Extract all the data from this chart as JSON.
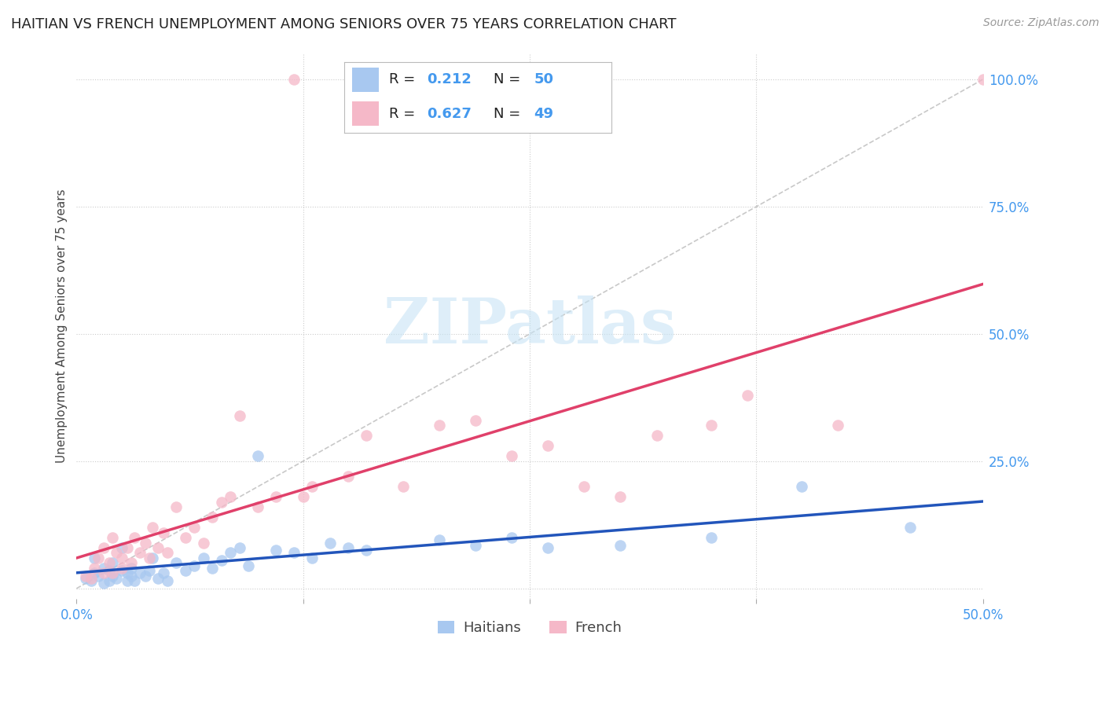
{
  "title": "HAITIAN VS FRENCH UNEMPLOYMENT AMONG SENIORS OVER 75 YEARS CORRELATION CHART",
  "source": "Source: ZipAtlas.com",
  "ylabel": "Unemployment Among Seniors over 75 years",
  "xlim": [
    0.0,
    0.5
  ],
  "ylim": [
    -0.02,
    1.05
  ],
  "haitian_R": 0.212,
  "haitian_N": 50,
  "french_R": 0.627,
  "french_N": 49,
  "haitian_color": "#A8C8F0",
  "french_color": "#F5B8C8",
  "haitian_line_color": "#2255BB",
  "french_line_color": "#E0406A",
  "watermark_color": "#C8E4F5",
  "background_color": "#FFFFFF",
  "haitian_x": [
    0.005,
    0.008,
    0.01,
    0.01,
    0.012,
    0.015,
    0.015,
    0.018,
    0.018,
    0.02,
    0.02,
    0.022,
    0.025,
    0.025,
    0.028,
    0.028,
    0.03,
    0.03,
    0.032,
    0.035,
    0.038,
    0.04,
    0.042,
    0.045,
    0.048,
    0.05,
    0.055,
    0.06,
    0.065,
    0.07,
    0.075,
    0.08,
    0.085,
    0.09,
    0.095,
    0.1,
    0.11,
    0.12,
    0.13,
    0.14,
    0.15,
    0.16,
    0.2,
    0.22,
    0.24,
    0.26,
    0.3,
    0.35,
    0.4,
    0.46
  ],
  "haitian_y": [
    0.02,
    0.015,
    0.03,
    0.06,
    0.025,
    0.04,
    0.01,
    0.035,
    0.015,
    0.025,
    0.05,
    0.02,
    0.08,
    0.035,
    0.03,
    0.015,
    0.025,
    0.04,
    0.015,
    0.03,
    0.025,
    0.035,
    0.06,
    0.02,
    0.03,
    0.015,
    0.05,
    0.035,
    0.045,
    0.06,
    0.04,
    0.055,
    0.07,
    0.08,
    0.045,
    0.26,
    0.075,
    0.07,
    0.06,
    0.09,
    0.08,
    0.075,
    0.095,
    0.085,
    0.1,
    0.08,
    0.085,
    0.1,
    0.2,
    0.12
  ],
  "french_x": [
    0.005,
    0.008,
    0.01,
    0.012,
    0.015,
    0.015,
    0.018,
    0.02,
    0.02,
    0.022,
    0.025,
    0.025,
    0.028,
    0.03,
    0.032,
    0.035,
    0.038,
    0.04,
    0.042,
    0.045,
    0.048,
    0.05,
    0.055,
    0.06,
    0.065,
    0.07,
    0.075,
    0.08,
    0.085,
    0.09,
    0.1,
    0.11,
    0.12,
    0.125,
    0.13,
    0.15,
    0.16,
    0.18,
    0.2,
    0.22,
    0.24,
    0.26,
    0.28,
    0.3,
    0.32,
    0.35,
    0.37,
    0.42,
    0.5
  ],
  "french_y": [
    0.025,
    0.02,
    0.04,
    0.06,
    0.03,
    0.08,
    0.05,
    0.1,
    0.03,
    0.07,
    0.04,
    0.06,
    0.08,
    0.05,
    0.1,
    0.07,
    0.09,
    0.06,
    0.12,
    0.08,
    0.11,
    0.07,
    0.16,
    0.1,
    0.12,
    0.09,
    0.14,
    0.17,
    0.18,
    0.34,
    0.16,
    0.18,
    1.0,
    0.18,
    0.2,
    0.22,
    0.3,
    0.2,
    0.32,
    0.33,
    0.26,
    0.28,
    0.2,
    0.18,
    0.3,
    0.32,
    0.38,
    0.32,
    1.0
  ]
}
